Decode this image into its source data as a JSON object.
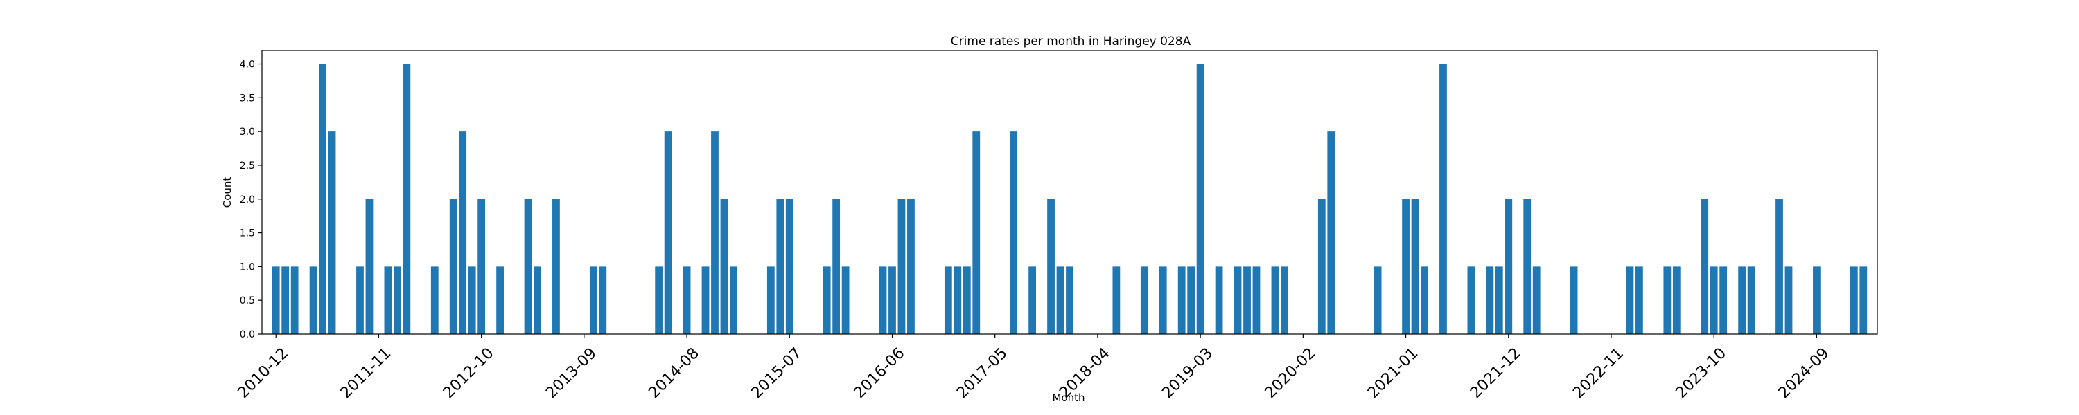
{
  "chart_data": {
    "type": "bar",
    "title": "Crime rates per month in Haringey 028A",
    "xlabel": "Month",
    "ylabel": "Count",
    "ylim": [
      0,
      4.2
    ],
    "yticks": [
      "0.0",
      "0.5",
      "1.0",
      "1.5",
      "2.0",
      "2.5",
      "3.0",
      "3.5",
      "4.0"
    ],
    "xticks": [
      "2010-12",
      "2011-11",
      "2012-10",
      "2013-09",
      "2014-08",
      "2015-07",
      "2016-06",
      "2017-05",
      "2018-04",
      "2019-03",
      "2020-02",
      "2021-01",
      "2021-12",
      "2022-11",
      "2023-10",
      "2024-09"
    ],
    "grid": false,
    "color": "#1f77b4",
    "series": [
      {
        "x": [
          "2010-12",
          "2011-01",
          "2011-02",
          "2011-04",
          "2011-05",
          "2011-06",
          "2011-09",
          "2011-10",
          "2011-12",
          "2012-01",
          "2012-02",
          "2012-05",
          "2012-07",
          "2012-08",
          "2012-09",
          "2012-10",
          "2012-12",
          "2013-03",
          "2013-04",
          "2013-06",
          "2013-10",
          "2013-11",
          "2014-05",
          "2014-06",
          "2014-08",
          "2014-10",
          "2014-11",
          "2014-12",
          "2015-01",
          "2015-05",
          "2015-06",
          "2015-07",
          "2015-11",
          "2015-12",
          "2016-01",
          "2016-05",
          "2016-06",
          "2016-07",
          "2016-08",
          "2016-12",
          "2017-01",
          "2017-02",
          "2017-03",
          "2017-07",
          "2017-09",
          "2017-11",
          "2017-12",
          "2018-01",
          "2018-06",
          "2018-09",
          "2018-11",
          "2019-01",
          "2019-02",
          "2019-03",
          "2019-05",
          "2019-07",
          "2019-08",
          "2019-09",
          "2019-11",
          "2019-12",
          "2020-04",
          "2020-05",
          "2020-10",
          "2021-01",
          "2021-02",
          "2021-03",
          "2021-05",
          "2021-08",
          "2021-10",
          "2021-11",
          "2021-12",
          "2022-02",
          "2022-03",
          "2022-07",
          "2023-01",
          "2023-02",
          "2023-05",
          "2023-06",
          "2023-09",
          "2023-10",
          "2023-11",
          "2024-01",
          "2024-02",
          "2024-05",
          "2024-06",
          "2024-09",
          "2025-01",
          "2025-02"
        ],
        "values": [
          1,
          1,
          1,
          1,
          4,
          3,
          1,
          2,
          1,
          1,
          4,
          1,
          2,
          3,
          1,
          2,
          1,
          2,
          1,
          2,
          1,
          1,
          1,
          3,
          1,
          1,
          3,
          2,
          1,
          1,
          2,
          2,
          1,
          2,
          1,
          1,
          1,
          2,
          2,
          1,
          1,
          1,
          3,
          3,
          1,
          2,
          1,
          1,
          1,
          1,
          1,
          1,
          1,
          4,
          1,
          1,
          1,
          1,
          1,
          1,
          2,
          3,
          1,
          2,
          2,
          1,
          4,
          1,
          1,
          1,
          2,
          2,
          1,
          1,
          1,
          1,
          1,
          1,
          2,
          1,
          1,
          1,
          1,
          2,
          1,
          1,
          1,
          1
        ]
      }
    ]
  }
}
